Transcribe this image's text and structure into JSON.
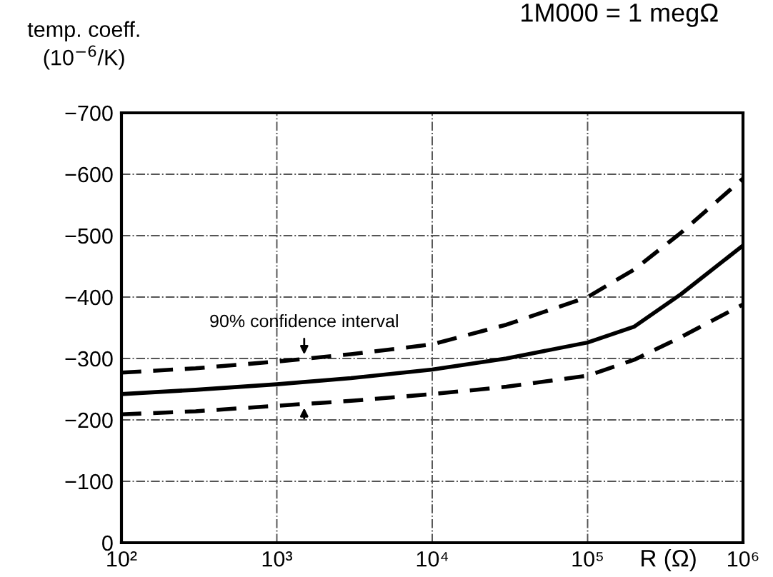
{
  "chart_data": {
    "type": "line",
    "log": "x",
    "ylabel": "temp. coeff.\n(10$^{−6}$/K)",
    "xlabel": "R (Ω)",
    "annotations": [
      {
        "text": "90% confidence interval",
        "x": 1500,
        "y": -300
      },
      "1M000 = 1 megΩ"
    ],
    "series": [
      {
        "color": "#000000",
        "line_style": "dashed",
        "x": [
          100,
          300,
          1000,
          3000,
          10000,
          30000,
          100000,
          200000,
          400000,
          1000000
        ],
        "values": [
          -277,
          -284,
          -295,
          -307,
          -323,
          -355,
          -400,
          -445,
          -505,
          -593
        ]
      },
      {
        "color": "#000000",
        "line_style": "solid",
        "x": [
          100,
          300,
          1000,
          3000,
          10000,
          30000,
          100000,
          200000,
          400000,
          1000000
        ],
        "values": [
          -242,
          -249,
          -258,
          -268,
          -282,
          -300,
          -326,
          -352,
          -405,
          -484
        ]
      },
      {
        "color": "#000000",
        "line_style": "dashed",
        "x": [
          100,
          300,
          1000,
          3000,
          10000,
          30000,
          100000,
          200000,
          400000,
          1000000
        ],
        "values": [
          -209,
          -214,
          -223,
          -231,
          -242,
          -254,
          -272,
          -298,
          -335,
          -388
        ]
      }
    ],
    "xlim": [
      100,
      1000000
    ],
    "ylim": [
      0,
      -700
    ],
    "xticks": [
      {
        "value": 100,
        "label": "10²"
      },
      {
        "value": 1000,
        "label": "10³"
      },
      {
        "value": 10000,
        "label": "10⁴"
      },
      {
        "value": 100000,
        "label": "10⁵"
      },
      {
        "value": 1000000,
        "label": "10⁶"
      }
    ],
    "yticks": [
      0,
      {
        "value": -100,
        "label": "−100"
      },
      {
        "value": -200,
        "label": "−200"
      },
      {
        "value": -300,
        "label": "−300"
      },
      {
        "value": -400,
        "label": "−400"
      },
      {
        "value": -500,
        "label": "−500"
      },
      {
        "value": -600,
        "label": "−600"
      },
      {
        "value": -700,
        "label": "−700"
      }
    ],
    "grid": true,
    "legend": false
  }
}
